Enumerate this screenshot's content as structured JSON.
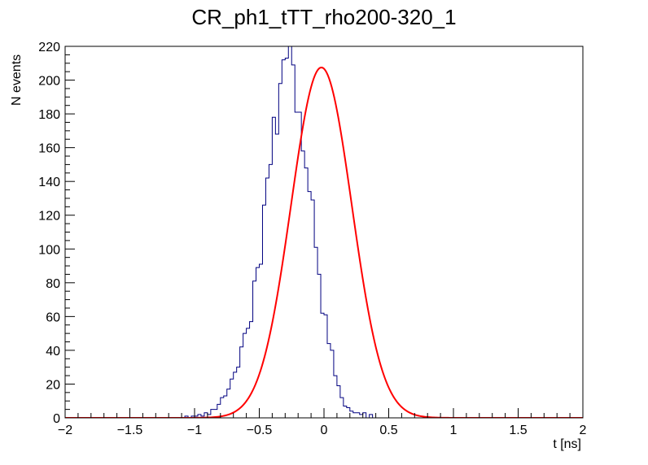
{
  "chart_data": {
    "type": "bar",
    "title": "CR_ph1_tTT_rho200-320_1",
    "xlabel": "t [ns]",
    "ylabel": "N events",
    "xlim": [
      -2,
      2
    ],
    "ylim": [
      0,
      220
    ],
    "x_ticks": [
      -2,
      -1.5,
      -1,
      -0.5,
      0,
      0.5,
      1,
      1.5,
      2
    ],
    "x_tick_labels": [
      "−2",
      "−1.5",
      "−1",
      "−0.5",
      "0",
      "0.5",
      "1",
      "1.5",
      "2"
    ],
    "y_ticks": [
      0,
      20,
      40,
      60,
      80,
      100,
      120,
      140,
      160,
      180,
      200,
      220
    ],
    "y_tick_labels": [
      "0",
      "20",
      "40",
      "60",
      "80",
      "100",
      "120",
      "140",
      "160",
      "180",
      "200",
      "220"
    ],
    "grid": false,
    "series": [
      {
        "kind": "histogram",
        "color": "#000080",
        "bin_start": -1.1,
        "bin_width": 0.025,
        "values": [
          0,
          1,
          0,
          1,
          1,
          2,
          1,
          3,
          2,
          5,
          5,
          8,
          12,
          13,
          17,
          23,
          27,
          30,
          42,
          50,
          53,
          57,
          81,
          89,
          91,
          126,
          142,
          150,
          178,
          168,
          198,
          212,
          213,
          230,
          209,
          181,
          181,
          158,
          148,
          134,
          129,
          101,
          85,
          62,
          61,
          44,
          40,
          25,
          19,
          12,
          7,
          6,
          4,
          3,
          3,
          2,
          3,
          0,
          2,
          0
        ]
      },
      {
        "kind": "gaussian-fit",
        "color": "#ff0000",
        "amplitude": 207.5,
        "mean": -0.02,
        "sigma": 0.235
      }
    ]
  }
}
